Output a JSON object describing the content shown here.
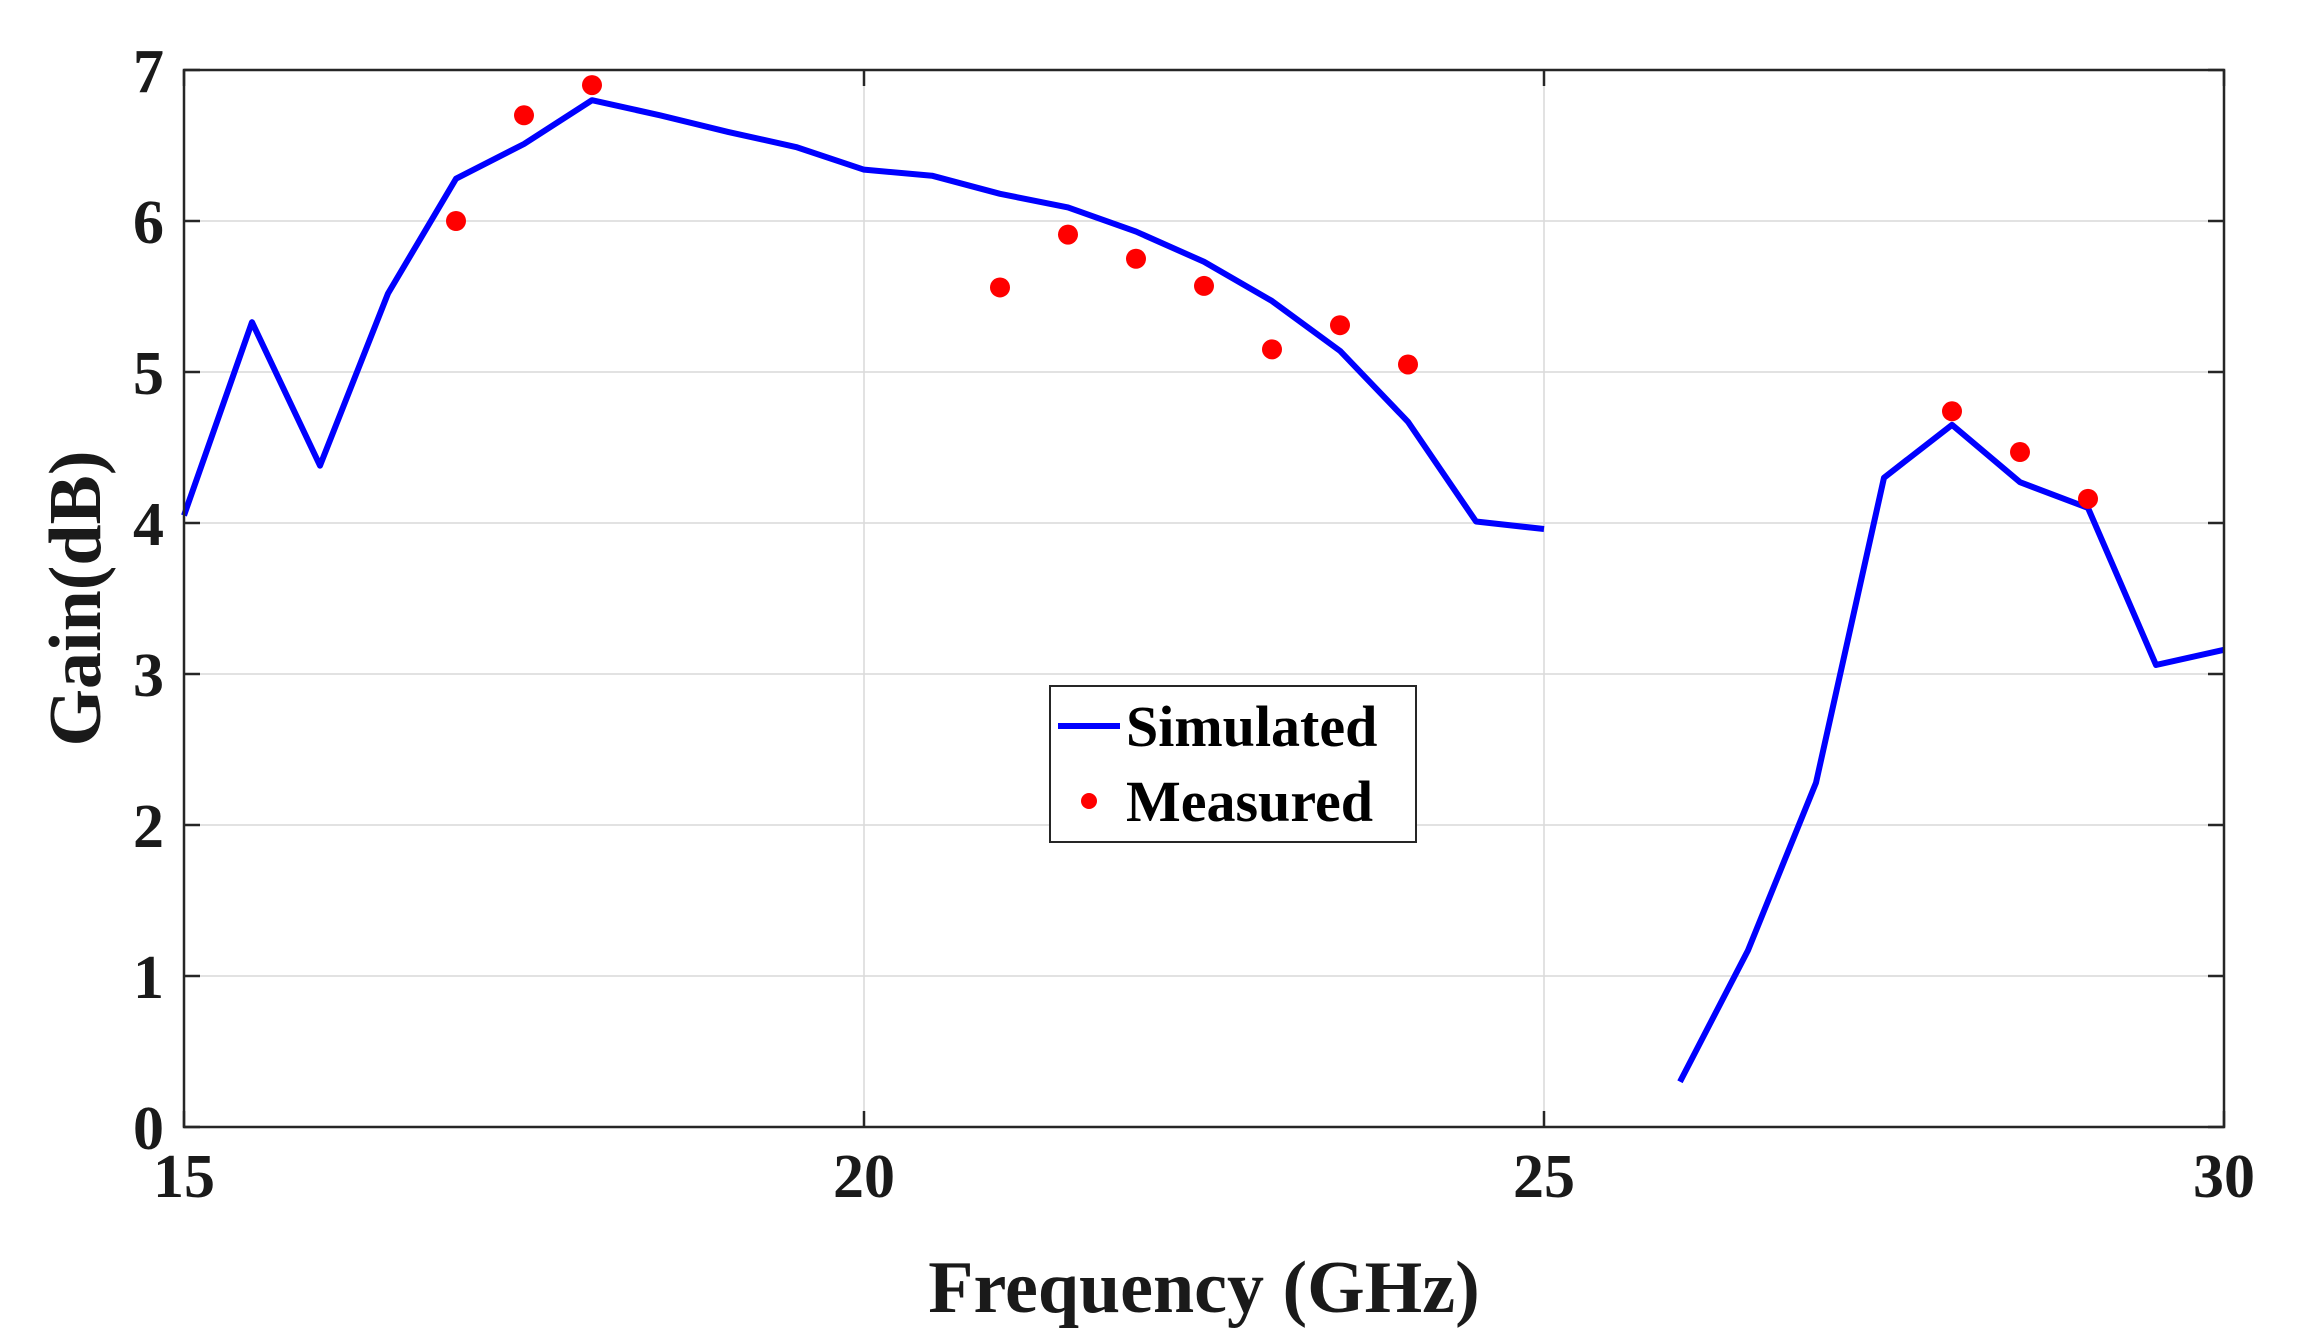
{
  "chart_data": {
    "type": "line",
    "title": "",
    "xlabel": "Frequency (GHz)",
    "ylabel": "Gain(dB)",
    "xlim": [
      15,
      30
    ],
    "ylim": [
      0,
      7
    ],
    "xticks": [
      15,
      20,
      25,
      30
    ],
    "yticks": [
      0,
      1,
      2,
      3,
      4,
      5,
      6,
      7
    ],
    "grid": true,
    "legend": {
      "position": "center",
      "entries": [
        "Simulated",
        "Measured"
      ]
    },
    "colors": {
      "simulated": "#0000ff",
      "measured": "#ff0000"
    },
    "series": [
      {
        "name": "Simulated",
        "style": "line",
        "segments": [
          {
            "x": [
              15,
              15.5,
              16,
              16.5,
              17,
              17.5,
              18,
              18.5,
              19,
              19.5,
              20,
              20.5,
              21,
              21.5,
              22,
              22.5,
              23,
              23.5,
              24,
              24.5,
              25
            ],
            "y": [
              4.05,
              5.33,
              4.38,
              5.52,
              6.28,
              6.51,
              6.8,
              6.7,
              6.59,
              6.49,
              6.34,
              6.3,
              6.18,
              6.09,
              5.93,
              5.73,
              5.47,
              5.14,
              4.67,
              4.01,
              3.96
            ]
          },
          {
            "x": [
              26,
              26.5,
              27,
              27.5,
              28,
              28.5,
              29,
              29.5,
              30
            ],
            "y": [
              0.3,
              1.17,
              2.28,
              4.3,
              4.65,
              4.27,
              4.1,
              3.06,
              3.16
            ]
          }
        ]
      },
      {
        "name": "Measured",
        "style": "marker",
        "x": [
          17,
          17.5,
          18,
          21,
          21.5,
          22,
          22.5,
          23,
          23.5,
          24,
          28,
          28.5,
          29
        ],
        "y": [
          6.0,
          6.7,
          6.9,
          5.56,
          5.91,
          5.75,
          5.57,
          5.15,
          5.31,
          5.05,
          4.74,
          4.47,
          4.16
        ]
      }
    ]
  }
}
